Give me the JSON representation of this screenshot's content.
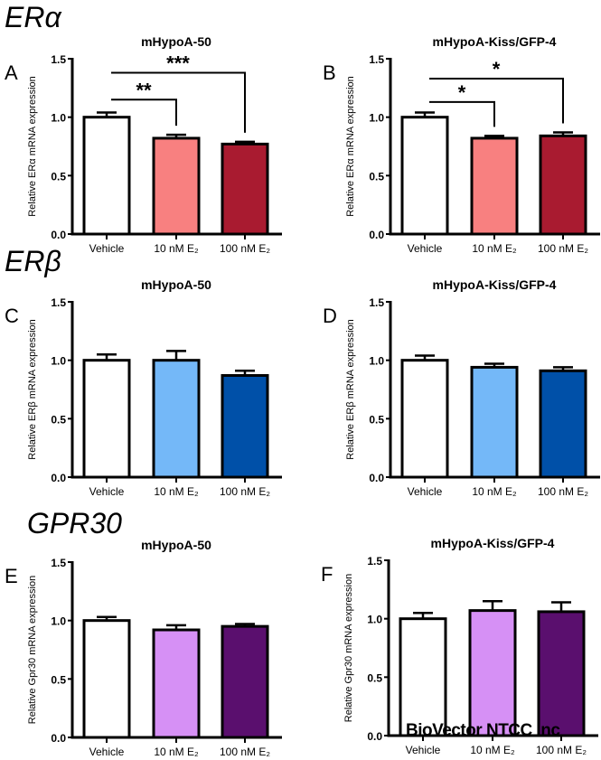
{
  "sections": [
    "ERα",
    "ERβ",
    "GPR30"
  ],
  "watermark": "BioVector NTCC Inc",
  "chart_data": [
    {
      "panel": "A",
      "type": "bar",
      "title": "mHypoA-50",
      "ylabel": "Relative ERα mRNA expression",
      "categories": [
        "Vehicle",
        "10 nM E₂",
        "100 nM E₂"
      ],
      "values": [
        1.0,
        0.82,
        0.77
      ],
      "errors": [
        0.04,
        0.03,
        0.02
      ],
      "colors": [
        "#FFFFFF",
        "#F88080",
        "#A91B30"
      ],
      "ylim": [
        0,
        1.5
      ],
      "yticks": [
        "0.0",
        "0.5",
        "1.0",
        "1.5"
      ],
      "significance": [
        {
          "from": 0,
          "to": 1,
          "label": "**",
          "level": 1.15
        },
        {
          "from": 0,
          "to": 2,
          "label": "***",
          "level": 1.38
        }
      ]
    },
    {
      "panel": "B",
      "type": "bar",
      "title": "mHypoA-Kiss/GFP-4",
      "ylabel": "Relative ERα mRNA expression",
      "categories": [
        "Vehicle",
        "10 nM E₂",
        "100 nM E₂"
      ],
      "values": [
        1.0,
        0.82,
        0.84
      ],
      "errors": [
        0.04,
        0.02,
        0.03
      ],
      "colors": [
        "#FFFFFF",
        "#F88080",
        "#A91B30"
      ],
      "ylim": [
        0,
        1.5
      ],
      "yticks": [
        "0.0",
        "0.5",
        "1.0",
        "1.5"
      ],
      "significance": [
        {
          "from": 0,
          "to": 1,
          "label": "*",
          "level": 1.13
        },
        {
          "from": 0,
          "to": 2,
          "label": "*",
          "level": 1.33
        }
      ]
    },
    {
      "panel": "C",
      "type": "bar",
      "title": "mHypoA-50",
      "ylabel": "Relative ERβ mRNA expression",
      "categories": [
        "Vehicle",
        "10 nM E₂",
        "100 nM E₂"
      ],
      "values": [
        1.0,
        1.0,
        0.87
      ],
      "errors": [
        0.05,
        0.08,
        0.04
      ],
      "colors": [
        "#FFFFFF",
        "#74B8F8",
        "#0050A8"
      ],
      "ylim": [
        0,
        1.5
      ],
      "yticks": [
        "0.0",
        "0.5",
        "1.0",
        "1.5"
      ],
      "significance": []
    },
    {
      "panel": "D",
      "type": "bar",
      "title": "mHypoA-Kiss/GFP-4",
      "ylabel": "Relative ERβ mRNA expression",
      "categories": [
        "Vehicle",
        "10 nM E₂",
        "100 nM E₂"
      ],
      "values": [
        1.0,
        0.94,
        0.91
      ],
      "errors": [
        0.04,
        0.03,
        0.03
      ],
      "colors": [
        "#FFFFFF",
        "#74B8F8",
        "#0050A8"
      ],
      "ylim": [
        0,
        1.5
      ],
      "yticks": [
        "0.0",
        "0.5",
        "1.0",
        "1.5"
      ],
      "significance": []
    },
    {
      "panel": "E",
      "type": "bar",
      "title": "mHypoA-50",
      "ylabel": "Relative Gpr30 mRNA expression",
      "categories": [
        "Vehicle",
        "10 nM E₂",
        "100 nM E₂"
      ],
      "values": [
        1.0,
        0.92,
        0.95
      ],
      "errors": [
        0.03,
        0.04,
        0.02
      ],
      "colors": [
        "#FFFFFF",
        "#D690F5",
        "#5A0F6E"
      ],
      "ylim": [
        0,
        1.5
      ],
      "yticks": [
        "0.0",
        "0.5",
        "1.0",
        "1.5"
      ],
      "significance": []
    },
    {
      "panel": "F",
      "type": "bar",
      "title": "mHypoA-Kiss/GFP-4",
      "ylabel": "Relative Gpr30 mRNA expression",
      "categories": [
        "Vehicle",
        "10 nM E₂",
        "100 nM E₂"
      ],
      "values": [
        1.0,
        1.07,
        1.06
      ],
      "errors": [
        0.05,
        0.08,
        0.08
      ],
      "colors": [
        "#FFFFFF",
        "#D690F5",
        "#5A0F6E"
      ],
      "ylim": [
        0,
        1.5
      ],
      "yticks": [
        "0.0",
        "0.5",
        "1.0",
        "1.5"
      ],
      "significance": []
    }
  ]
}
